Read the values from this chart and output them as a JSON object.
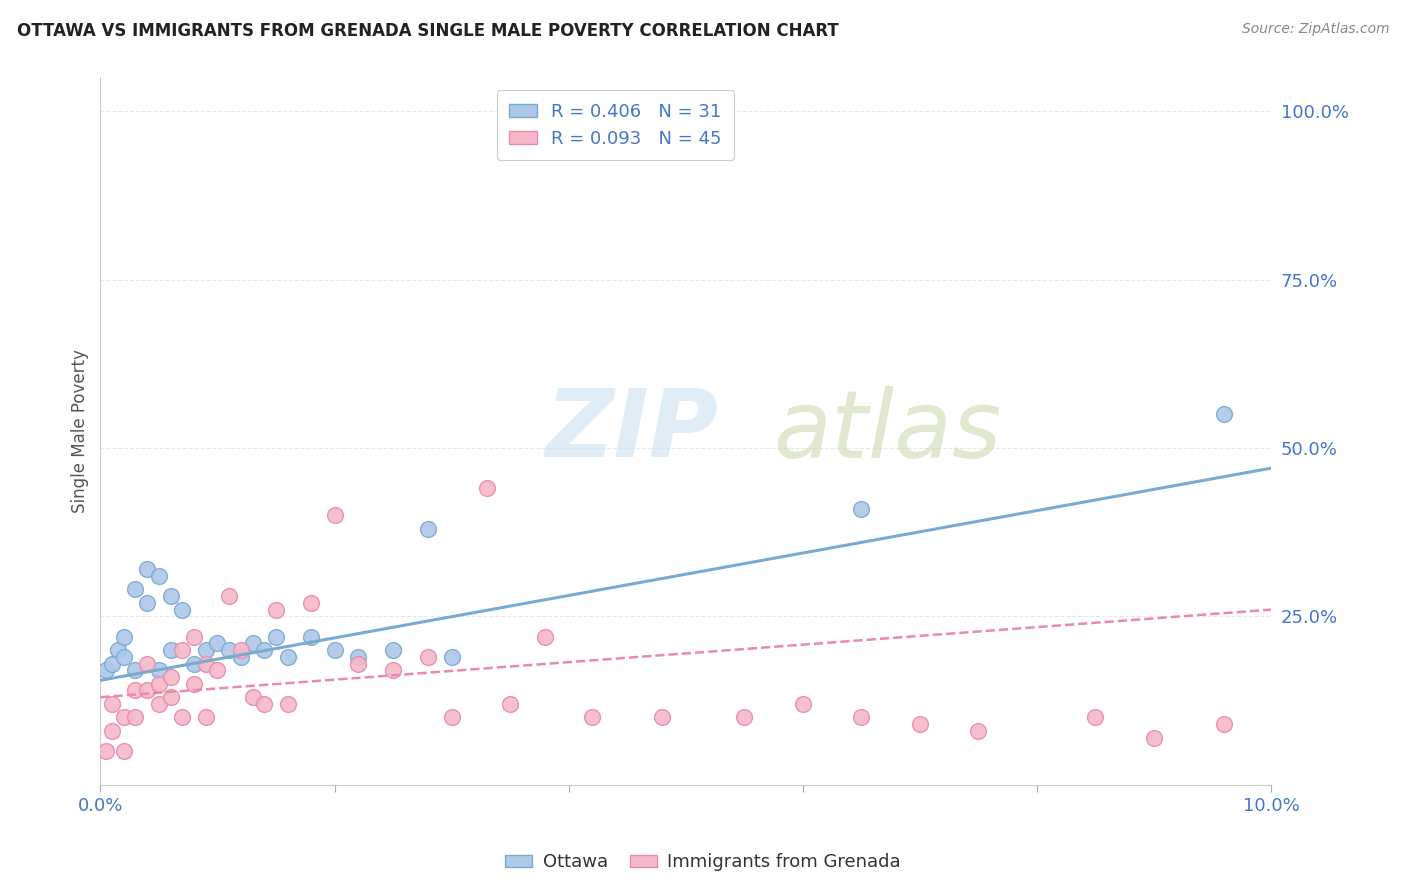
{
  "title": "OTTAWA VS IMMIGRANTS FROM GRENADA SINGLE MALE POVERTY CORRELATION CHART",
  "source": "Source: ZipAtlas.com",
  "ylabel": "Single Male Poverty",
  "xlim": [
    0.0,
    0.1
  ],
  "ylim": [
    0.0,
    1.05
  ],
  "xticks": [
    0.0,
    0.02,
    0.04,
    0.06,
    0.08,
    0.1
  ],
  "xticklabels": [
    "0.0%",
    "",
    "",
    "",
    "",
    "10.0%"
  ],
  "yticks": [
    0.0,
    0.25,
    0.5,
    0.75,
    1.0
  ],
  "yticklabels": [
    "",
    "25.0%",
    "50.0%",
    "75.0%",
    "100.0%"
  ],
  "ottawa_color": "#adc8e8",
  "grenada_color": "#f5b8c8",
  "ottawa_edge_color": "#7aaad0",
  "grenada_edge_color": "#e88aaa",
  "ottawa_line_color": "#7aaad0",
  "grenada_line_color": "#e88aaa",
  "background_color": "#ffffff",
  "grid_color": "#e8e8e8",
  "ottawa_x": [
    0.0005,
    0.001,
    0.0015,
    0.002,
    0.002,
    0.003,
    0.003,
    0.004,
    0.004,
    0.005,
    0.005,
    0.006,
    0.006,
    0.007,
    0.008,
    0.009,
    0.01,
    0.011,
    0.012,
    0.013,
    0.014,
    0.015,
    0.016,
    0.018,
    0.02,
    0.022,
    0.025,
    0.028,
    0.03,
    0.065,
    0.096
  ],
  "ottawa_y": [
    0.17,
    0.18,
    0.2,
    0.19,
    0.22,
    0.17,
    0.29,
    0.27,
    0.32,
    0.17,
    0.31,
    0.2,
    0.28,
    0.26,
    0.18,
    0.2,
    0.21,
    0.2,
    0.19,
    0.21,
    0.2,
    0.22,
    0.19,
    0.22,
    0.2,
    0.19,
    0.2,
    0.38,
    0.19,
    0.41,
    0.55
  ],
  "grenada_x": [
    0.0005,
    0.001,
    0.001,
    0.002,
    0.002,
    0.003,
    0.003,
    0.004,
    0.004,
    0.005,
    0.005,
    0.006,
    0.006,
    0.007,
    0.007,
    0.008,
    0.008,
    0.009,
    0.009,
    0.01,
    0.011,
    0.012,
    0.013,
    0.014,
    0.015,
    0.016,
    0.018,
    0.02,
    0.022,
    0.025,
    0.028,
    0.03,
    0.033,
    0.035,
    0.038,
    0.042,
    0.048,
    0.055,
    0.06,
    0.065,
    0.07,
    0.075,
    0.085,
    0.09,
    0.096
  ],
  "grenada_y": [
    0.05,
    0.08,
    0.12,
    0.05,
    0.1,
    0.1,
    0.14,
    0.14,
    0.18,
    0.15,
    0.12,
    0.13,
    0.16,
    0.1,
    0.2,
    0.15,
    0.22,
    0.1,
    0.18,
    0.17,
    0.28,
    0.2,
    0.13,
    0.12,
    0.26,
    0.12,
    0.27,
    0.4,
    0.18,
    0.17,
    0.19,
    0.1,
    0.44,
    0.12,
    0.22,
    0.1,
    0.1,
    0.1,
    0.12,
    0.1,
    0.09,
    0.08,
    0.1,
    0.07,
    0.09
  ],
  "title_color": "#222222",
  "source_color": "#888888",
  "tick_color": "#4477cc",
  "ylabel_color": "#555555"
}
